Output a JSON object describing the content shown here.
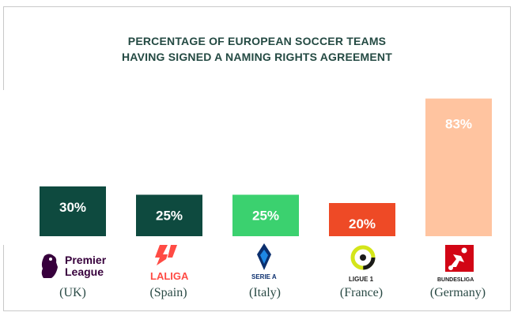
{
  "title": {
    "line1": "PERCENTAGE OF EUROPEAN SOCCER TEAMS",
    "line2": "HAVING SIGNED A NAMING RIGHTS AGREEMENT"
  },
  "chart_data": {
    "type": "bar",
    "title": "PERCENTAGE OF EUROPEAN SOCCER TEAMS HAVING SIGNED A NAMING RIGHTS AGREEMENT",
    "categories": [
      "(UK)",
      "(Spain)",
      "(Italy)",
      "(France)",
      "(Germany)"
    ],
    "values": [
      30,
      25,
      25,
      20,
      83
    ],
    "labels": [
      "30%",
      "25%",
      "25%",
      "20%",
      "83%"
    ],
    "colors": [
      "#0e4a3f",
      "#0e4a3f",
      "#3bd16f",
      "#ee4a26",
      "#ffc4a0"
    ],
    "ylim": [
      0,
      100
    ],
    "grid": false
  },
  "logos": [
    {
      "icon": "premier-league-lion-icon",
      "text_line1": "Premier",
      "text_line2": "League",
      "color": "#37003c"
    },
    {
      "icon": "laliga-icon",
      "text": "LALIGA",
      "color": "#ff4b44"
    },
    {
      "icon": "serie-a-icon",
      "text": "SERIE A",
      "color": "#0b2f6e"
    },
    {
      "icon": "ligue-1-icon",
      "text": "LIGUE 1",
      "color": "#1a1a1a"
    },
    {
      "icon": "bundesliga-icon",
      "text": "BUNDESLIGA",
      "color": "#d20515"
    }
  ]
}
